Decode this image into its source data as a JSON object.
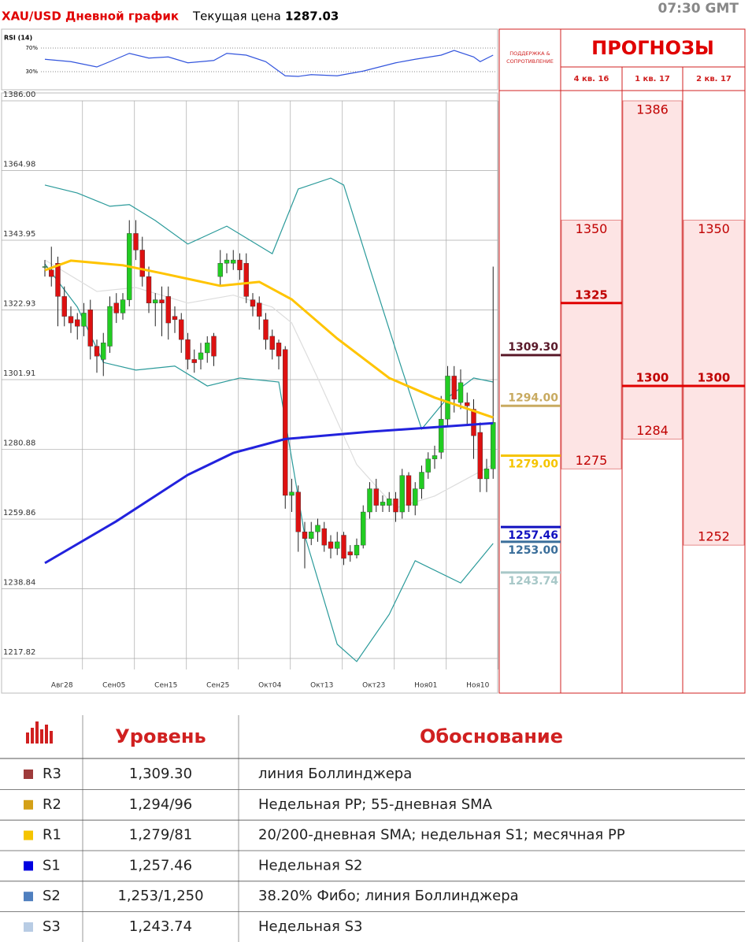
{
  "header": {
    "title": "XAU/USD Дневной график",
    "price_label": "Текущая цена",
    "price": 1287.03,
    "time": "07:30 GMT"
  },
  "chart_data": [
    {
      "type": "line",
      "title": "RSI (14)",
      "ylim": [
        0,
        100
      ],
      "yticks": [
        {
          "value": 70,
          "label": "70%"
        },
        {
          "value": 30,
          "label": "30%"
        }
      ],
      "grid": true,
      "series": [
        {
          "color": "#3355dd",
          "x": [
            0,
            4,
            8,
            10,
            13,
            16,
            19,
            22,
            26,
            28,
            31,
            34,
            37,
            39,
            41,
            45,
            49,
            54,
            57,
            61,
            63,
            66,
            67,
            69
          ],
          "values": [
            51,
            47,
            38,
            47,
            61,
            53,
            55,
            45,
            49,
            61,
            58,
            47,
            23,
            22,
            25,
            23,
            31,
            45,
            51,
            58,
            66,
            55,
            47,
            58
          ]
        }
      ]
    },
    {
      "type": "candlestick",
      "up_color": "#22cc22",
      "down_color": "#dd1111",
      "ylim": [
        1214.5,
        1386
      ],
      "yticks": [
        {
          "value": 1386,
          "label": "1386.00"
        },
        {
          "value": 1364.98,
          "label": "1364.98"
        },
        {
          "value": 1343.95,
          "label": "1343.95"
        },
        {
          "value": 1322.93,
          "label": "1322.93"
        },
        {
          "value": 1301.91,
          "label": "1301.91"
        },
        {
          "value": 1280.88,
          "label": "1280.88"
        },
        {
          "value": 1259.86,
          "label": "1259.86"
        },
        {
          "value": 1238.84,
          "label": "1238.84"
        },
        {
          "value": 1217.82,
          "label": "1217.82"
        }
      ],
      "categories": [
        null,
        null,
        null,
        "Авг28",
        null,
        null,
        null,
        null,
        null,
        null,
        null,
        "Сен05",
        null,
        null,
        null,
        null,
        null,
        null,
        null,
        "Сен15",
        null,
        null,
        null,
        null,
        null,
        null,
        null,
        "Сен25",
        null,
        null,
        null,
        null,
        null,
        null,
        null,
        "Окт04",
        null,
        null,
        null,
        null,
        null,
        null,
        null,
        "Окт13",
        null,
        null,
        null,
        null,
        null,
        null,
        null,
        "Окт23",
        null,
        null,
        null,
        null,
        null,
        null,
        null,
        "Ноя01",
        null,
        null,
        null,
        null,
        null,
        null,
        null,
        "Ноя10",
        null,
        null
      ],
      "open": [
        1336,
        1335,
        1337,
        1327,
        1321,
        1320,
        1318,
        1323,
        1312,
        1308,
        1312,
        1325,
        1322,
        1326,
        1346,
        1341,
        1333,
        1325,
        1326,
        1327,
        1321,
        1320,
        1314,
        1308,
        1308,
        1310,
        1315,
        1333,
        1337,
        1337,
        1338,
        1337,
        1326,
        1325,
        1320,
        1315,
        1313,
        1311,
        1267,
        1268,
        1256,
        1254,
        1256,
        1257,
        1253,
        1251,
        1255,
        1250,
        1249,
        1252,
        1262,
        1269,
        1264,
        1264,
        1266,
        1262,
        1273,
        1264,
        1269,
        1274,
        1278,
        1280,
        1290,
        1303,
        1295,
        1295,
        1293,
        1286,
        1272,
        1275
      ],
      "close": [
        1336,
        1333,
        1327,
        1321,
        1319,
        1318,
        1322,
        1312,
        1309,
        1313,
        1324,
        1322,
        1326,
        1346,
        1341,
        1333,
        1325,
        1326,
        1325,
        1319,
        1320,
        1314,
        1308,
        1307,
        1310,
        1313,
        1309,
        1337,
        1338,
        1338,
        1335,
        1327,
        1324,
        1321,
        1314,
        1311,
        1309,
        1267,
        1268,
        1256,
        1254,
        1256,
        1258,
        1252,
        1251,
        1253,
        1248,
        1249,
        1252,
        1262,
        1269,
        1264,
        1265,
        1266,
        1262,
        1273,
        1264,
        1269,
        1274,
        1278,
        1279,
        1290,
        1303,
        1296,
        1301,
        1294,
        1285,
        1272,
        1275,
        1289
      ],
      "high": [
        1338,
        1342,
        1339,
        1330,
        1324,
        1322,
        1325,
        1326,
        1314,
        1316,
        1327,
        1328,
        1328,
        1350,
        1350,
        1345,
        1336,
        1328,
        1330,
        1330,
        1324,
        1322,
        1316,
        1311,
        1313,
        1315,
        1316,
        1341,
        1340,
        1341,
        1340,
        1340,
        1328,
        1327,
        1322,
        1317,
        1314,
        1312,
        1272,
        1270,
        1259,
        1259,
        1260,
        1259,
        1255,
        1256,
        1256,
        1252,
        1254,
        1264,
        1271,
        1272,
        1267,
        1268,
        1268,
        1275,
        1274,
        1271,
        1276,
        1280,
        1282,
        1297,
        1306,
        1306,
        1305,
        1298,
        1296,
        1289,
        1278,
        1336
      ],
      "low": [
        1333,
        1330,
        1318,
        1318,
        1316,
        1314,
        1315,
        1308,
        1304,
        1303,
        1310,
        1319,
        1320,
        1324,
        1338,
        1330,
        1322,
        1318,
        1315,
        1314,
        1316,
        1310,
        1305,
        1304,
        1305,
        1307,
        1306,
        1330,
        1334,
        1335,
        1332,
        1325,
        1321,
        1317,
        1311,
        1308,
        1305,
        1263,
        1262,
        1250,
        1245,
        1252,
        1253,
        1250,
        1248,
        1249,
        1246,
        1247,
        1248,
        1251,
        1260,
        1262,
        1262,
        1262,
        1259,
        1260,
        1262,
        1261,
        1266,
        1272,
        1275,
        1278,
        1288,
        1292,
        1293,
        1288,
        1278,
        1268,
        1268,
        1272
      ],
      "lines": [
        {
          "color": "#2a9a9a",
          "x": [
            0,
            5,
            10,
            13,
            17,
            22,
            28,
            35,
            39,
            44,
            46,
            50,
            55,
            58,
            62,
            66,
            69
          ],
          "values": [
            1360.6,
            1358.2,
            1354.2,
            1354.7,
            1349.9,
            1342.8,
            1348.2,
            1339.9,
            1359.4,
            1362.7,
            1360.6,
            1335.6,
            1304.8,
            1287,
            1296.5,
            1302.4,
            1301.2
          ]
        },
        {
          "color": "#2a9a9a",
          "x": [
            0,
            5,
            9,
            14,
            20,
            25,
            30,
            36,
            40,
            45,
            48,
            53,
            57,
            64,
            69
          ],
          "values": [
            1336.8,
            1323.8,
            1307.1,
            1304.8,
            1306,
            1300,
            1302.4,
            1301.2,
            1254.9,
            1222.1,
            1216.9,
            1231.1,
            1247.3,
            1240.6,
            1252.5
          ]
        },
        {
          "color": "#dddddd",
          "x": [
            0,
            8,
            14,
            22,
            29,
            35,
            38,
            42,
            48,
            54,
            60,
            69
          ],
          "values": [
            1338,
            1328.5,
            1329.7,
            1325,
            1327.4,
            1323.8,
            1319,
            1302.4,
            1276.3,
            1263.2,
            1266.8,
            1276.3
          ]
        },
        {
          "color": "#ffc400",
          "x": [
            0,
            4,
            12,
            18,
            27,
            33,
            38,
            45,
            53,
            60,
            69
          ],
          "values": [
            1334.9,
            1337.8,
            1336.4,
            1334,
            1330.2,
            1331.4,
            1326.1,
            1314.3,
            1302.4,
            1296.5,
            1290.5
          ]
        },
        {
          "color": "#2222dd",
          "x": [
            0,
            11,
            22,
            29,
            37,
            50,
            69
          ],
          "values": [
            1246.6,
            1259.2,
            1273.2,
            1279.8,
            1284,
            1286.2,
            1288.8
          ]
        }
      ],
      "levels": [
        {
          "value": 1309.3,
          "label": "1309.30",
          "color": "#5a1a2a"
        },
        {
          "value": 1294,
          "label": "1294.00",
          "color": "#c8aa60"
        },
        {
          "value": 1279,
          "label": "1279.00",
          "color": "#f5c400"
        },
        {
          "value": 1257.46,
          "label": "1257.46",
          "color": "#1010c0"
        },
        {
          "value": 1253,
          "label": "1253.00",
          "color": "#3a6e9a"
        },
        {
          "value": 1243.74,
          "label": "1243.74",
          "color": "#a8c8c8"
        }
      ]
    }
  ],
  "forecast": {
    "title": "ПРОГНОЗЫ",
    "subtitle": [
      "ПОДДЕРЖКА &",
      "СОПРОТИВЛЕНИЕ"
    ],
    "columns": [
      {
        "quarter": "4 кв. 16",
        "high": 1350,
        "pivot": 1325,
        "low": 1275
      },
      {
        "quarter": "1 кв. 17",
        "high": 1386,
        "pivot": 1300,
        "low": 1284
      },
      {
        "quarter": "2 кв. 17",
        "high": 1350,
        "pivot": 1300,
        "low": 1252
      }
    ]
  },
  "table": {
    "header": [
      "Уровень",
      "Обоснование"
    ],
    "rows": [
      {
        "name": "R3",
        "color": "#9e3b3b",
        "level": "1,309.30",
        "reason": "линия Боллинджера"
      },
      {
        "name": "R2",
        "color": "#d4a017",
        "level": "1,294/96",
        "reason": "Недельная PP; 55-дневная SMA"
      },
      {
        "name": "R1",
        "color": "#f5c400",
        "level": "1,279/81",
        "reason": "20/200-дневная SMA; недельная S1; месячная PP"
      },
      {
        "name": "S1",
        "color": "#0000e0",
        "level": "1,257.46",
        "reason": "Недельная S2"
      },
      {
        "name": "S2",
        "color": "#4f7fbf",
        "level": "1,253/1,250",
        "reason": "38.20% Фибо; линия Боллинджера"
      },
      {
        "name": "S3",
        "color": "#b8cce4",
        "level": "1,243.74",
        "reason": "Недельная S3"
      }
    ]
  }
}
